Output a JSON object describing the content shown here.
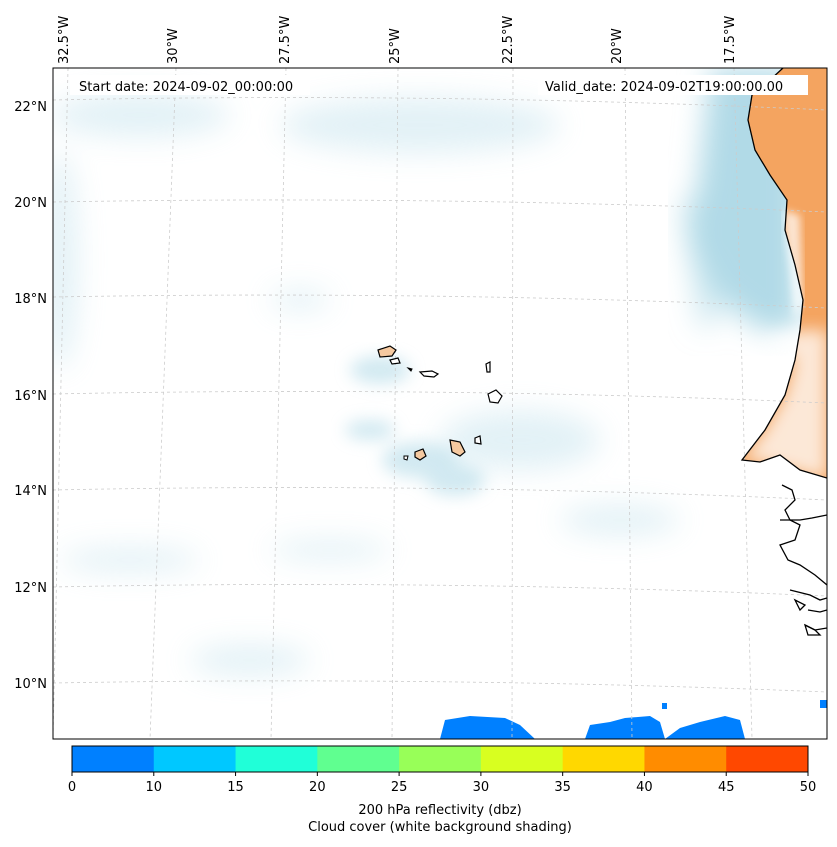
{
  "map": {
    "start_date_label": "Start date: 2024-09-02_00:00:00",
    "valid_date_label": "Valid_date: 2024-09-02T19:00:00.00",
    "longitude_labels": [
      "32.5°W",
      "30°W",
      "27.5°W",
      "25°W",
      "22.5°W",
      "20°W",
      "17.5°W"
    ],
    "latitude_labels": [
      "22°N",
      "20°N",
      "18°N",
      "16°N",
      "14°N",
      "12°N",
      "10°N"
    ],
    "colors": {
      "land_shade": "#f4a460",
      "cloud_shade": "#add8e6",
      "coast_line": "#000000",
      "grid_line": "#cccccc"
    }
  },
  "colorbar": {
    "ticks": [
      "0",
      "10",
      "15",
      "20",
      "25",
      "30",
      "35",
      "40",
      "45",
      "50"
    ],
    "colors": [
      "#0080ff",
      "#00c8ff",
      "#20ffd8",
      "#60ff90",
      "#98ff58",
      "#d8ff20",
      "#ffd800",
      "#ff8c00",
      "#ff4800"
    ],
    "title_line1": "200 hPa reflectivity (dbz)",
    "title_line2": "Cloud cover (white background shading)"
  }
}
